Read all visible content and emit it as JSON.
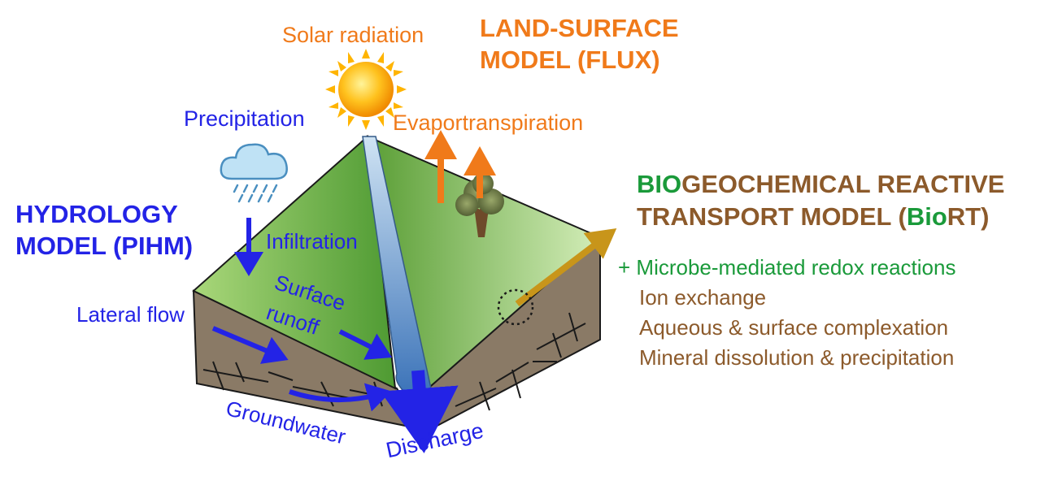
{
  "labels": {
    "solar_radiation": "Solar radiation",
    "land_surface_model_line1": "LAND-SURFACE",
    "land_surface_model_line2": "MODEL (FLUX)",
    "precipitation": "Precipitation",
    "evapotranspiration": "Evaportranspiration",
    "hydrology_model_line1": "HYDROLOGY",
    "hydrology_model_line2": "MODEL (PIHM)",
    "infiltration": "Infiltration",
    "surface": "Surface",
    "runoff": "runoff",
    "lateral_flow": "Lateral flow",
    "groundwater": "Groundwater",
    "discharge": "Discharge"
  },
  "biort": {
    "title_line1_bio": "BIO",
    "title_line1_rest": "GEOCHEMICAL REACTIVE",
    "title_line2_prefix": "TRANSPORT MODEL (",
    "title_line2_bio": "Bio",
    "title_line2_suffix": "RT)",
    "processes": [
      "+ Microbe-mediated redox reactions",
      "Ion exchange",
      "Aqueous & surface complexation",
      "Mineral dissolution & precipitation"
    ]
  },
  "colors": {
    "land_surface": "#f07a1a",
    "hydrology": "#2323e6",
    "biogeochem": "#8c5a2b",
    "bio_green": "#1a9a3a",
    "grass": "#8cc45a",
    "soil": "#8a7a66",
    "stream": "#7fb0dd",
    "arrow_gold": "#c8951a"
  },
  "icons": [
    "sun-icon",
    "rain-cloud-icon",
    "tree-icon"
  ]
}
